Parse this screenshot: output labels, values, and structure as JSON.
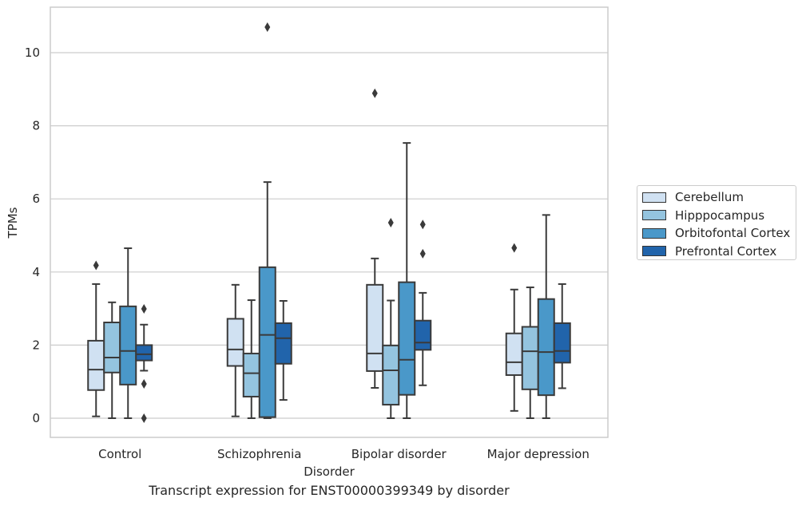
{
  "chart_data": {
    "type": "box",
    "xlabel": "Disorder",
    "ylabel": "TPMs",
    "caption": "Transcript expression for ENST00000399349 by disorder",
    "categories": [
      "Control",
      "Schizophrenia",
      "Bipolar disorder",
      "Major depression"
    ],
    "yticks": [
      0,
      2,
      4,
      6,
      8,
      10
    ],
    "ylim": [
      -0.5,
      11.3
    ],
    "grid": "horizontal",
    "legend_position": "right",
    "series": [
      {
        "name": "Cerebellum",
        "color": "#d0e1f2",
        "boxes": [
          {
            "whislo": 0.05,
            "q1": 0.77,
            "med": 1.33,
            "q3": 2.12,
            "whishi": 3.67,
            "fliers": [
              4.18
            ]
          },
          {
            "whislo": 0.05,
            "q1": 1.43,
            "med": 1.88,
            "q3": 2.72,
            "whishi": 3.65,
            "fliers": []
          },
          {
            "whislo": 0.83,
            "q1": 1.29,
            "med": 1.77,
            "q3": 3.65,
            "whishi": 4.37,
            "fliers": [
              8.89
            ]
          },
          {
            "whislo": 0.2,
            "q1": 1.18,
            "med": 1.53,
            "q3": 2.32,
            "whishi": 3.52,
            "fliers": [
              4.66
            ]
          }
        ]
      },
      {
        "name": "Hipppocampus",
        "color": "#94c4df",
        "boxes": [
          {
            "whislo": 0.0,
            "q1": 1.25,
            "med": 1.66,
            "q3": 2.62,
            "whishi": 3.17,
            "fliers": []
          },
          {
            "whislo": 0.0,
            "q1": 0.59,
            "med": 1.23,
            "q3": 1.77,
            "whishi": 3.23,
            "fliers": []
          },
          {
            "whislo": 0.0,
            "q1": 0.37,
            "med": 1.31,
            "q3": 1.99,
            "whishi": 3.22,
            "fliers": [
              5.35
            ]
          },
          {
            "whislo": 0.0,
            "q1": 0.79,
            "med": 1.83,
            "q3": 2.5,
            "whishi": 3.58,
            "fliers": []
          }
        ]
      },
      {
        "name": "Orbitofontal Cortex",
        "color": "#4a98c9",
        "boxes": [
          {
            "whislo": 0.0,
            "q1": 0.92,
            "med": 1.84,
            "q3": 3.06,
            "whishi": 4.65,
            "fliers": []
          },
          {
            "whislo": 0.0,
            "q1": 0.03,
            "med": 2.28,
            "q3": 4.13,
            "whishi": 6.46,
            "fliers": [
              10.7
            ]
          },
          {
            "whislo": 0.0,
            "q1": 0.64,
            "med": 1.6,
            "q3": 3.72,
            "whishi": 7.53,
            "fliers": []
          },
          {
            "whislo": 0.0,
            "q1": 0.63,
            "med": 1.81,
            "q3": 3.26,
            "whishi": 5.56,
            "fliers": []
          }
        ]
      },
      {
        "name": "Prefrontal Cortex",
        "color": "#2164ab",
        "boxes": [
          {
            "whislo": 1.3,
            "q1": 1.58,
            "med": 1.75,
            "q3": 2.0,
            "whishi": 2.56,
            "fliers": [
              2.99,
              0.94,
              0.0
            ]
          },
          {
            "whislo": 0.5,
            "q1": 1.49,
            "med": 2.19,
            "q3": 2.6,
            "whishi": 3.21,
            "fliers": []
          },
          {
            "whislo": 0.9,
            "q1": 1.87,
            "med": 2.07,
            "q3": 2.67,
            "whishi": 3.43,
            "fliers": [
              5.3,
              4.5
            ]
          },
          {
            "whislo": 0.82,
            "q1": 1.52,
            "med": 1.84,
            "q3": 2.6,
            "whishi": 3.67,
            "fliers": []
          }
        ]
      }
    ]
  }
}
